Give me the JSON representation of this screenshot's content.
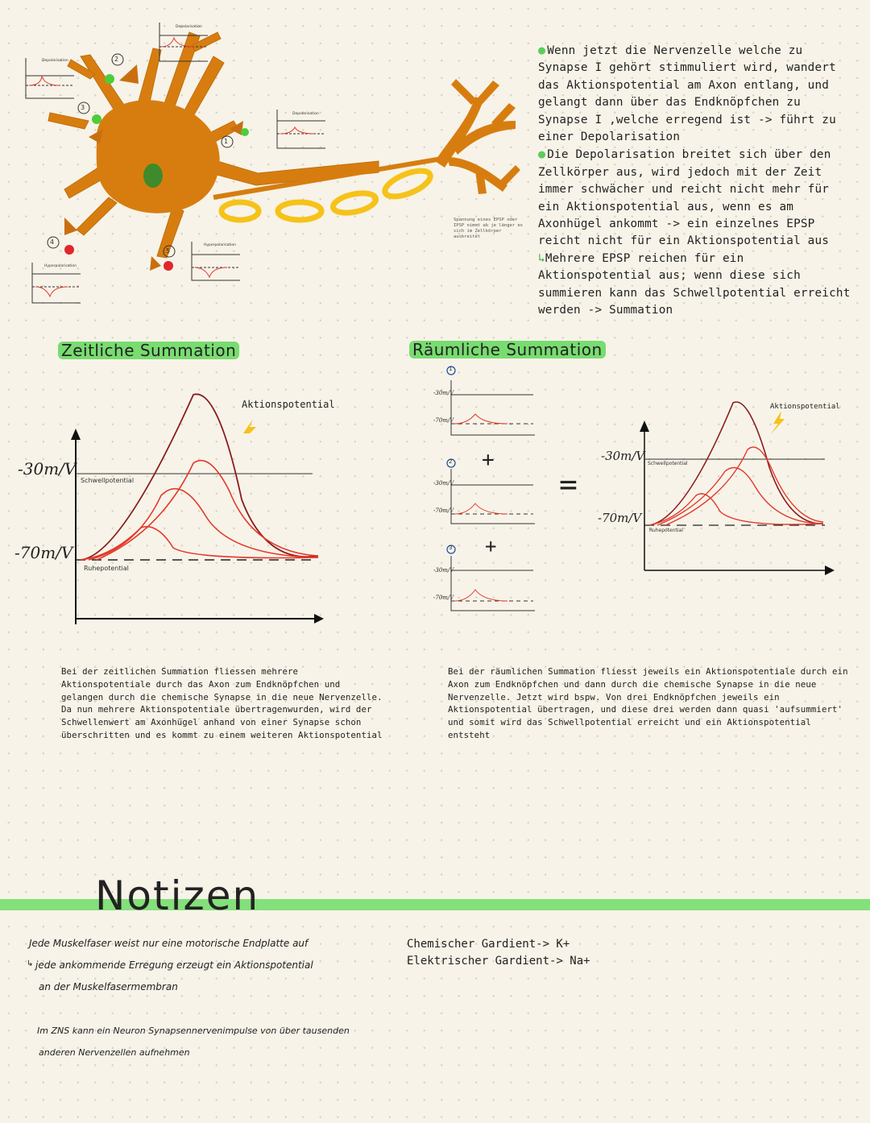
{
  "neuron": {
    "labels": {
      "one": "1",
      "two": "2",
      "three": "3",
      "four": "4",
      "five": "5"
    },
    "mini_depol_title": "Depolarisation",
    "mini_hyper_title": "Hyperpolarisation",
    "caption": "Spannung eines EPSP oder IPSP nimmt ab je länger es sich im Zellkörper ausbreitet"
  },
  "explanation": {
    "p1": "Wenn jetzt die Nervenzelle welche zu Synapse I gehört stimmuliert wird, wandert das Aktionspotential am Axon entlang, und gelangt dann über das Endknöpfchen zu Synapse I ,welche erregend ist -> führt zu einer Depolarisation",
    "p2": "Die Depolarisation breitet sich über den Zellkörper aus, wird jedoch mit der Zeit immer schwächer und reicht nicht mehr für ein Aktionspotential aus, wenn es am Axonhügel ankommt -> ein einzelnes EPSP reicht nicht für ein Aktionspotential aus",
    "p3": "Mehrere EPSP reichen für ein Aktionspotential aus; wenn diese sich summieren kann das Schwellpotential erreicht werden -> Summation"
  },
  "temporal": {
    "title": "Zeitliche Summation",
    "ap_label": "Aktionspotential",
    "y_high": "-30m/V",
    "y_low": "-70m/V",
    "threshold": "Schwellpotential",
    "rest": "Ruhepotential",
    "text": "Bei der zeitlichen Summation fliessen mehrere Aktionspotentiale durch das Axon zum Endknöpfchen und gelangen durch die chemische Synapse in die neue Nervenzelle. Da nun mehrere Aktionspotentiale übertragenwurden, wird der Schwellenwert am Axonhügel anhand von einer Synapse schon überschritten und es kommt zu einem weiteren Aktionspotential"
  },
  "spatial": {
    "title": "Räumliche Summation",
    "ap_label": "Aktionspotential",
    "y_high": "-30m/V",
    "y_low": "-70m/V",
    "mini_high": "-30m/V",
    "mini_low": "-70m/V",
    "threshold": "Schwellpotential",
    "rest": "Ruhepotential",
    "n1": "1",
    "n2": "2",
    "n3": "3",
    "plus": "+",
    "equals": "=",
    "text": "Bei der räumlichen Summation fliesst jeweils ein Aktionspotentiale durch ein Axon zum Endknöpfchen und dann durch die chemische Synapse in die neue Nervenzelle. Jetzt wird bspw. Von drei Endknöpfchen jeweils ein Aktionspotential übertragen, und diese drei werden dann quasi 'aufsummiert' und somit wird das Schwellpotential erreicht und ein Aktionspotential entsteht"
  },
  "notes": {
    "heading": "Notizen",
    "line1": "Jede Muskelfaser weist nur eine motorische Endplatte auf",
    "line2": "jede ankommende Erregung erzeugt ein Aktionspotential",
    "line3": "an der Muskelfasermembran",
    "line4": "Im ZNS kann ein Neuron Synapsennervenimpulse von über tausenden",
    "line5": "anderen Nervenzellen aufnehmen",
    "gradient1": "Chemischer Gardient-> K+",
    "gradient2": "Elektrischer Gardient-> Na+"
  },
  "colors": {
    "neuron": "#d77d10",
    "axon_ring": "#f6c21a",
    "highlight": "#78dc70",
    "curve_red": "#e23a2c",
    "curve_dark": "#8a1d1d"
  }
}
